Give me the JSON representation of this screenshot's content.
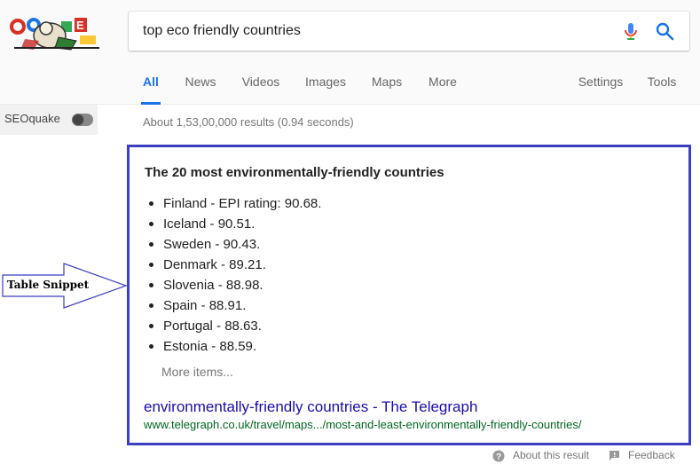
{
  "search": {
    "query": "top eco friendly countries"
  },
  "tabs": [
    {
      "label": "All",
      "active": true
    },
    {
      "label": "News"
    },
    {
      "label": "Videos"
    },
    {
      "label": "Images"
    },
    {
      "label": "Maps"
    },
    {
      "label": "More"
    },
    {
      "label": "Settings"
    },
    {
      "label": "Tools"
    }
  ],
  "sidebar": {
    "seoquake_label": "SEOquake",
    "seoquake_enabled": false
  },
  "results": {
    "stats": "About 1,53,00,000 results (0.94 seconds)"
  },
  "snippet": {
    "title": "The 20 most environmentally-friendly countries",
    "items": [
      "Finland - EPI rating: 90.68.",
      "Iceland - 90.51.",
      "Sweden - 90.43.",
      "Denmark - 89.21.",
      "Slovenia - 88.98.",
      "Spain - 88.91.",
      "Portugal - 88.63.",
      "Estonia - 88.59."
    ],
    "more_label": "More items...",
    "link_text": "environmentally-friendly countries - The Telegraph",
    "url_text": "www.telegraph.co.uk/travel/maps.../most-and-least-environmentally-friendly-countries/"
  },
  "annotation": {
    "label": "Table Snippet"
  },
  "footer": {
    "about_label": "About this result",
    "feedback_label": "Feedback"
  },
  "colors": {
    "accent": "#1a73e8",
    "highlight_border": "#3b3fc0",
    "link": "#1a0dab",
    "url": "#006621"
  },
  "icons": {
    "logo": "google-doodle-logo",
    "mic": "microphone-icon",
    "search": "search-icon",
    "toggle": "toggle-switch",
    "help": "help-icon",
    "feedback": "feedback-icon"
  }
}
